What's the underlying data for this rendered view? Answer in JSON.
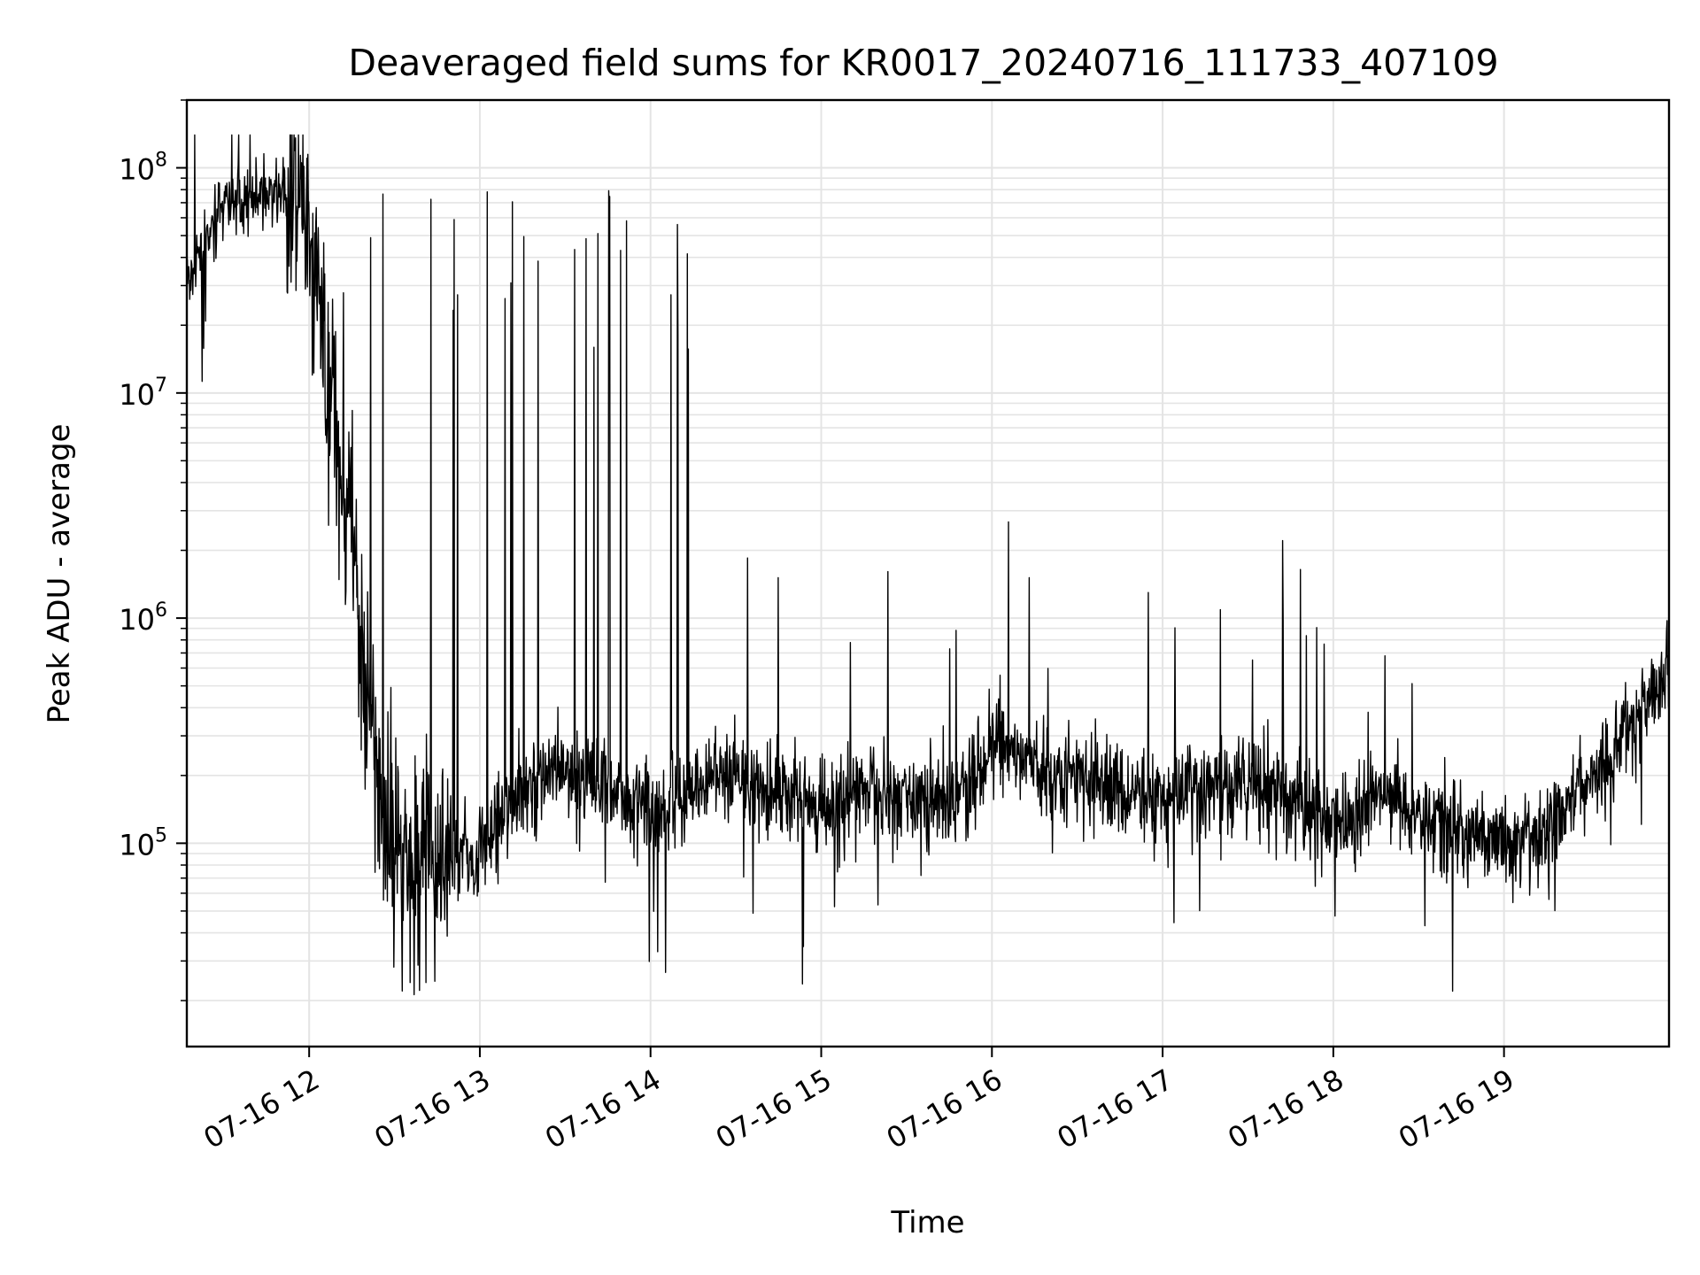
{
  "chart_data": {
    "type": "line",
    "title": "Deaveraged field sums for KR0017_20240716_111733_407109",
    "xlabel": "Time",
    "ylabel": "Peak ADU - average",
    "yscale": "log",
    "xlim": [
      "07-16 11:17",
      "07-16 19:58"
    ],
    "ylim": [
      12500,
      200000000
    ],
    "grid": true,
    "line_color": "#000000",
    "x_ticks": [
      "07-16 12",
      "07-16 13",
      "07-16 14",
      "07-16 15",
      "07-16 16",
      "07-16 17",
      "07-16 18",
      "07-16 19"
    ],
    "y_ticks": [
      {
        "base": "10",
        "exp": "5",
        "value": 100000
      },
      {
        "base": "10",
        "exp": "6",
        "value": 1000000
      },
      {
        "base": "10",
        "exp": "7",
        "value": 10000000
      },
      {
        "base": "10",
        "exp": "8",
        "value": 100000000
      }
    ],
    "series": [
      {
        "x": [
          "07-16 11:17",
          "07-16 11:30",
          "07-16 11:45",
          "07-16 11:55",
          "07-16 12:05",
          "07-16 12:15",
          "07-16 12:25",
          "07-16 12:35",
          "07-16 12:45",
          "07-16 13:00",
          "07-16 13:15",
          "07-16 13:30",
          "07-16 13:45",
          "07-16 14:00",
          "07-16 14:15",
          "07-16 14:30",
          "07-16 14:45",
          "07-16 15:00",
          "07-16 15:15",
          "07-16 15:30",
          "07-16 15:45",
          "07-16 16:00",
          "07-16 16:15",
          "07-16 16:30",
          "07-16 16:45",
          "07-16 17:00",
          "07-16 17:15",
          "07-16 17:30",
          "07-16 17:45",
          "07-16 18:00",
          "07-16 18:15",
          "07-16 18:30",
          "07-16 18:45",
          "07-16 19:00",
          "07-16 19:15",
          "07-16 19:30",
          "07-16 19:45",
          "07-16 19:58"
        ],
        "values": [
          30000000,
          70000000,
          75000000,
          80000000,
          20000000,
          2000000,
          150000,
          90000,
          80000,
          90000,
          180000,
          200000,
          180000,
          140000,
          170000,
          210000,
          170000,
          140000,
          170000,
          160000,
          150000,
          280000,
          220000,
          200000,
          170000,
          160000,
          170000,
          180000,
          150000,
          120000,
          160000,
          140000,
          110000,
          100000,
          110000,
          200000,
          350000,
          600000
        ]
      }
    ]
  }
}
